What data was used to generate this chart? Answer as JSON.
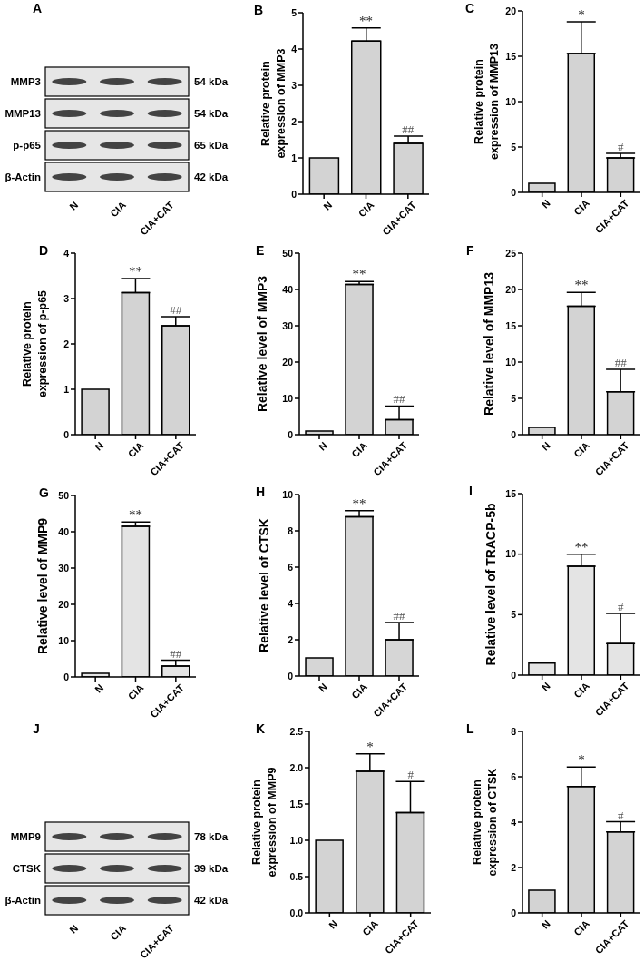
{
  "chart_data": [
    {
      "type": "other",
      "title": "A",
      "categories": [
        "N",
        "CIA",
        "CIA+CAT"
      ],
      "y_categories": [
        "MMP3",
        "MMP13",
        "p-p65",
        "β-Actin"
      ],
      "y2_categories": [
        "54 kDa",
        "54 kDa",
        "65 kDa",
        "42 kDa"
      ]
    },
    {
      "type": "bar",
      "title": "B",
      "ylabel": "Relative protein expression of MMP3",
      "categories": [
        "N",
        "CIA",
        "CIA+CAT"
      ],
      "values": [
        1,
        4.22,
        1.4
      ],
      "errors": [
        null,
        [
          4.22,
          4.58
        ],
        [
          1.4,
          1.6
        ]
      ],
      "color": "#d3d3d3",
      "ylim": [
        0,
        5
      ],
      "yticks": [
        0,
        1,
        2,
        3,
        4,
        5
      ],
      "annotations": [
        {
          "text": "**",
          "x": "CIA",
          "y": 4.58
        },
        {
          "text": "##",
          "x": "CIA+CAT",
          "y": 1.6
        }
      ]
    },
    {
      "type": "bar",
      "title": "C",
      "ylabel": "Relative protein expression of MMP13",
      "categories": [
        "N",
        "CIA",
        "CIA+CAT"
      ],
      "values": [
        1,
        15.3,
        3.8
      ],
      "errors": [
        null,
        [
          15.3,
          18.8
        ],
        [
          3.8,
          4.3
        ]
      ],
      "color": "#d3d3d3",
      "ylim": [
        0,
        20
      ],
      "yticks": [
        0,
        5,
        10,
        15,
        20
      ],
      "annotations": [
        {
          "text": "*",
          "x": "CIA",
          "y": 18.8
        },
        {
          "text": "#",
          "x": "CIA+CAT",
          "y": 4.3
        }
      ]
    },
    {
      "type": "bar",
      "title": "D",
      "ylabel": "Relative protein expression of p-p65",
      "categories": [
        "N",
        "CIA",
        "CIA+CAT"
      ],
      "values": [
        1,
        3.13,
        2.4
      ],
      "errors": [
        null,
        [
          3.13,
          3.44
        ],
        [
          2.4,
          2.6
        ]
      ],
      "color": "#d3d3d3",
      "ylim": [
        0,
        4
      ],
      "yticks": [
        0,
        1,
        2,
        3,
        4
      ],
      "annotations": [
        {
          "text": "**",
          "x": "CIA",
          "y": 3.44
        },
        {
          "text": "##",
          "x": "CIA+CAT",
          "y": 2.6
        }
      ]
    },
    {
      "type": "bar",
      "title": "E",
      "ylabel": "Relative level of MMP3",
      "categories": [
        "N",
        "CIA",
        "CIA+CAT"
      ],
      "values": [
        1,
        41.4,
        4.1
      ],
      "errors": [
        null,
        [
          41.4,
          42.2
        ],
        [
          4.1,
          7.9
        ]
      ],
      "color": "#d3d3d3",
      "ylim": [
        0,
        50
      ],
      "yticks": [
        0,
        10,
        20,
        30,
        40,
        50
      ],
      "annotations": [
        {
          "text": "**",
          "x": "CIA",
          "y": 42.2
        },
        {
          "text": "##",
          "x": "CIA+CAT",
          "y": 7.9
        }
      ]
    },
    {
      "type": "bar",
      "title": "F",
      "ylabel": "Relative level of MMP13",
      "categories": [
        "N",
        "CIA",
        "CIA+CAT"
      ],
      "values": [
        1,
        17.7,
        5.9
      ],
      "errors": [
        null,
        [
          17.7,
          19.6
        ],
        [
          5.9,
          9
        ]
      ],
      "color": "#d3d3d3",
      "ylim": [
        0,
        25
      ],
      "yticks": [
        0,
        5,
        10,
        15,
        20,
        25
      ],
      "annotations": [
        {
          "text": "**",
          "x": "CIA",
          "y": 19.6
        },
        {
          "text": "##",
          "x": "CIA+CAT",
          "y": 9
        }
      ]
    },
    {
      "type": "bar",
      "title": "G",
      "ylabel": "Relative level of MMP9",
      "categories": [
        "N",
        "CIA",
        "CIA+CAT"
      ],
      "values": [
        1,
        41.5,
        3
      ],
      "errors": [
        null,
        [
          41.5,
          42.7
        ],
        [
          3,
          4.6
        ]
      ],
      "color": "#e4e4e4",
      "ylim": [
        0,
        50
      ],
      "yticks": [
        0,
        10,
        20,
        30,
        40,
        50
      ],
      "annotations": [
        {
          "text": "**",
          "x": "CIA",
          "y": 42.7
        },
        {
          "text": "##",
          "x": "CIA+CAT",
          "y": 4.6
        }
      ]
    },
    {
      "type": "bar",
      "title": "H",
      "ylabel": "Relative level of CTSK",
      "categories": [
        "N",
        "CIA",
        "CIA+CAT"
      ],
      "values": [
        1,
        8.77,
        2
      ],
      "errors": [
        null,
        [
          8.77,
          9.11
        ],
        [
          2,
          2.95
        ]
      ],
      "color": "#d6d6d6",
      "ylim": [
        0,
        10
      ],
      "yticks": [
        0,
        2,
        4,
        6,
        8,
        10
      ],
      "annotations": [
        {
          "text": "**",
          "x": "CIA",
          "y": 9.11
        },
        {
          "text": "##",
          "x": "CIA+CAT",
          "y": 2.95
        }
      ]
    },
    {
      "type": "bar",
      "title": "I",
      "ylabel": "Relative level of TRACP-5b",
      "categories": [
        "N",
        "CIA",
        "CIA+CAT"
      ],
      "values": [
        1,
        9,
        2.6
      ],
      "errors": [
        null,
        [
          9,
          10
        ],
        [
          2.6,
          5.1
        ]
      ],
      "color": "#e4e4e4",
      "ylim": [
        0,
        15
      ],
      "yticks": [
        0,
        5,
        10,
        15
      ],
      "annotations": [
        {
          "text": "**",
          "x": "CIA",
          "y": 10
        },
        {
          "text": "#",
          "x": "CIA+CAT",
          "y": 5.1
        }
      ]
    },
    {
      "type": "other",
      "title": "J",
      "categories": [
        "N",
        "CIA",
        "CIA+CAT"
      ],
      "y_categories": [
        "MMP9",
        "CTSK",
        "β-Actin"
      ],
      "y2_categories": [
        "78 kDa",
        "39 kDa",
        "42 kDa"
      ]
    },
    {
      "type": "bar",
      "title": "K",
      "ylabel": "Relative protein expression of MMP9",
      "categories": [
        "N",
        "CIA",
        "CIA+CAT"
      ],
      "values": [
        1,
        1.95,
        1.38
      ],
      "errors": [
        null,
        [
          1.95,
          2.19
        ],
        [
          1.38,
          1.81
        ]
      ],
      "color": "#d3d3d3",
      "ylim": [
        0,
        2.5
      ],
      "yticks": [
        {
          "value": 0,
          "label": "0.0"
        },
        0.5,
        {
          "value": 1,
          "label": "1.0"
        },
        1.5,
        {
          "value": 2,
          "label": "2.0"
        },
        2.5
      ],
      "annotations": [
        {
          "text": "*",
          "x": "CIA",
          "y": 2.19
        },
        {
          "text": "#",
          "x": "CIA+CAT",
          "y": 1.81
        }
      ]
    },
    {
      "type": "bar",
      "title": "L",
      "ylabel": "Relative protein expression of CTSK",
      "categories": [
        "N",
        "CIA",
        "CIA+CAT"
      ],
      "values": [
        1,
        5.57,
        3.57
      ],
      "errors": [
        null,
        [
          5.57,
          6.43
        ],
        [
          3.57,
          4.02
        ]
      ],
      "color": "#d3d3d3",
      "ylim": [
        0,
        8
      ],
      "yticks": [
        0,
        2,
        4,
        6,
        8
      ],
      "annotations": [
        {
          "text": "*",
          "x": "CIA",
          "y": 6.43
        },
        {
          "text": "#",
          "x": "CIA+CAT",
          "y": 4.02
        }
      ]
    }
  ]
}
